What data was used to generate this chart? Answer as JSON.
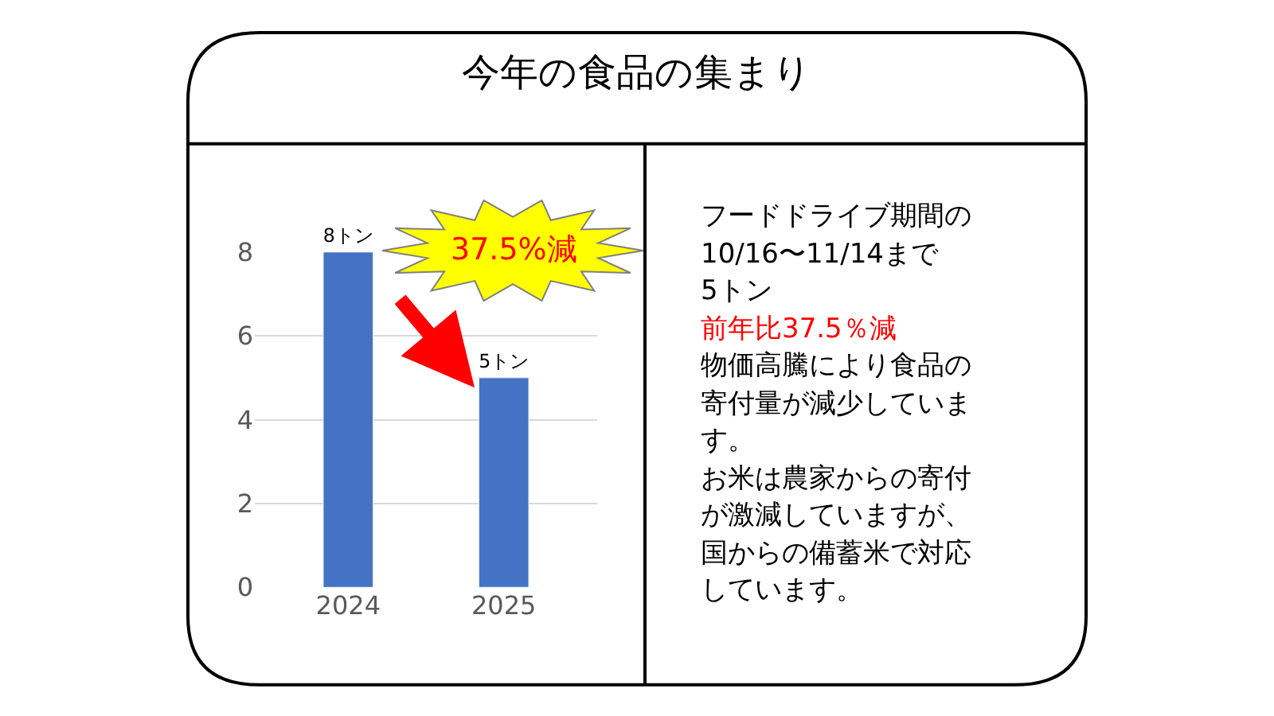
{
  "chart_data": [
    {
      "type": "bar",
      "title": "今年の食品の集まり",
      "categories": [
        "2024",
        "2025"
      ],
      "values": [
        8,
        5
      ],
      "color": "#4472c4",
      "value_labels": [
        "8トン",
        "5トン"
      ],
      "ylim": [
        0,
        8
      ],
      "yticks": [
        0,
        2,
        4,
        6,
        8
      ],
      "grid": "y",
      "legend": false,
      "annotations": [
        "37.5%減"
      ]
    },
    {
      "type": "other",
      "annotations": [
        "フードドライブ期間の",
        "10/16〜11/14まで",
        "5トン",
        "前年比37.5％減",
        "物価高騰により食品の",
        "寄付量が減少していま",
        "す。",
        "お米は農家からの寄付",
        "が激減していますが、",
        "国からの備蓄米で対応",
        "しています。"
      ]
    }
  ]
}
